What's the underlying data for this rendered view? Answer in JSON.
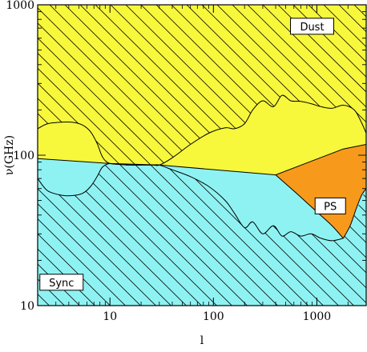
{
  "chart_data": {
    "type": "area",
    "xlabel": "l",
    "ylabel": "ν(GHz)",
    "xscale": "log",
    "yscale": "log",
    "xlim": [
      2,
      3000
    ],
    "ylim": [
      10,
      1000
    ],
    "x_ticks": [
      10,
      100,
      1000
    ],
    "x_tick_labels": [
      "10",
      "100",
      "1000"
    ],
    "y_ticks": [
      10,
      100,
      1000
    ],
    "y_tick_labels": [
      "10",
      "100",
      "1000"
    ],
    "colors": {
      "dust": "#f7f73c",
      "sync": "#8ff2f2",
      "ps": "#f79a1c",
      "outline": "#000000"
    },
    "region_labels": [
      {
        "name": "dust",
        "text": "Dust"
      },
      {
        "name": "ps",
        "text": "PS"
      },
      {
        "name": "sync",
        "text": "Sync"
      }
    ],
    "boundaries": {
      "dust_sync": {
        "x": [
          2,
          10,
          30,
          400,
          1800,
          3000
        ],
        "y": [
          95,
          88,
          86,
          74,
          110,
          118
        ]
      },
      "dust_foreground_upper": {
        "x": [
          2,
          2.5,
          3.5,
          4.5,
          5.5,
          6.5,
          7.5,
          8.3,
          9,
          10,
          12,
          15,
          20,
          26,
          30,
          40,
          60,
          90,
          130,
          160,
          200,
          240,
          300,
          380,
          460,
          560,
          700,
          880,
          1100,
          1400,
          1800,
          2300,
          2700,
          3000
        ],
        "y": [
          150,
          162,
          166,
          165,
          158,
          143,
          120,
          100,
          92,
          88,
          87,
          86,
          86,
          86,
          86,
          96,
          118,
          140,
          152,
          150,
          162,
          200,
          230,
          210,
          250,
          230,
          228,
          220,
          210,
          205,
          215,
          200,
          165,
          140
        ]
      },
      "sync_foreground_lower": {
        "x": [
          2,
          2.5,
          3.5,
          4.5,
          5.5,
          6.5,
          7.5,
          8.3,
          9,
          10,
          12,
          15,
          20,
          26,
          30,
          40,
          60,
          90,
          130,
          160,
          200,
          240,
          300,
          380,
          460,
          560,
          700,
          880,
          1100,
          1400,
          1800
        ],
        "y": [
          70,
          58,
          54,
          54,
          56,
          62,
          72,
          82,
          86,
          88,
          87,
          86,
          86,
          86,
          86,
          80,
          72,
          62,
          50,
          41,
          33,
          36,
          30,
          34,
          29,
          31,
          29,
          30,
          28,
          27,
          28
        ]
      },
      "ps_left": {
        "x": [
          400,
          650,
          1000,
          1400,
          1800
        ],
        "y": [
          74,
          55,
          42,
          34,
          28
        ]
      },
      "ps_right": {
        "x": [
          1800,
          2100,
          2400,
          2700,
          3000
        ],
        "y": [
          28,
          34,
          44,
          54,
          60
        ]
      }
    }
  }
}
